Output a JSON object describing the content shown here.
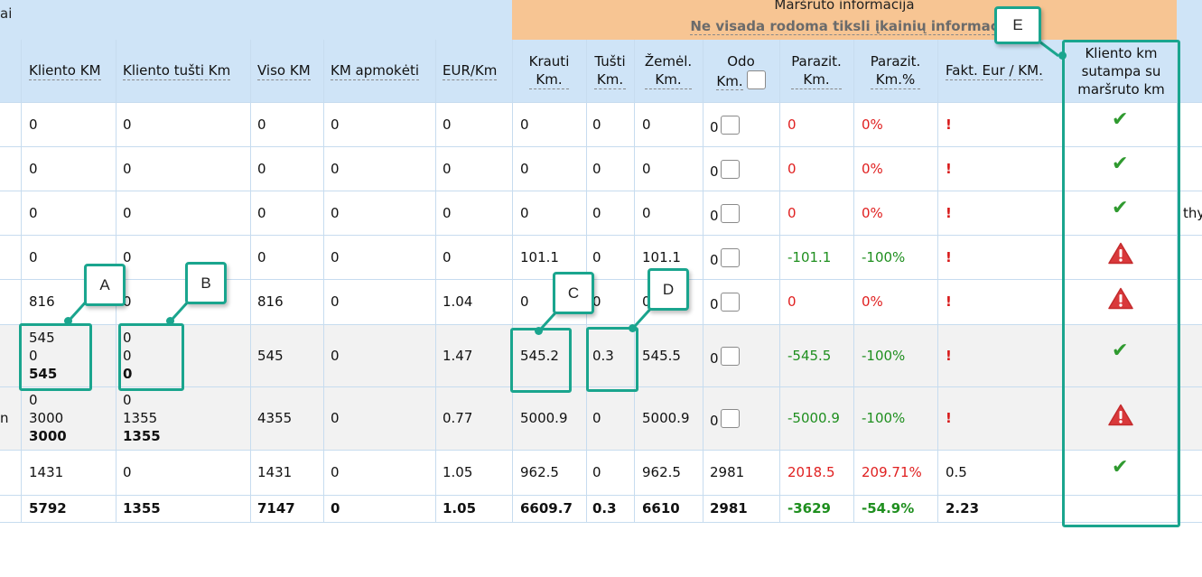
{
  "header": {
    "left_fragment": "ai",
    "route_title": "Maršruto informacija",
    "route_subtitle": "Ne visada rodoma tiksli įkainių informac"
  },
  "columns": {
    "client_km": "Kliento KM",
    "client_empty_km": "Kliento tušti Km",
    "total_km": "Viso KM",
    "km_paid": "KM apmokėti",
    "eur_km": "EUR/Km",
    "loaded_km_1": "Krauti",
    "loaded_km_2": "Km.",
    "empty_km_1": "Tušti",
    "empty_km_2": "Km.",
    "map_km_1": "Žemėl.",
    "map_km_2": "Km.",
    "odo_1": "Odo",
    "odo_2": "Km.",
    "parasitic_km_1": "Parazit.",
    "parasitic_km_2": "Km.",
    "parasitic_pct_1": "Parazit.",
    "parasitic_pct_2": "Km.%",
    "fact_eur_km": "Fakt. Eur / KM.",
    "match_1": "Kliento km",
    "match_2": "sutampa su",
    "match_3": "maršruto km"
  },
  "rows": [
    {
      "client_km": [
        "0"
      ],
      "client_empty": [
        "0"
      ],
      "total": "0",
      "paid": "0",
      "eur": "0",
      "loaded": "0",
      "empty": "0",
      "map": "0",
      "odo": "0",
      "parasitic": "0",
      "parasitic_pct": "0%",
      "fact": "!",
      "status": "check"
    },
    {
      "client_km": [
        "0"
      ],
      "client_empty": [
        "0"
      ],
      "total": "0",
      "paid": "0",
      "eur": "0",
      "loaded": "0",
      "empty": "0",
      "map": "0",
      "odo": "0",
      "parasitic": "0",
      "parasitic_pct": "0%",
      "fact": "!",
      "status": "check"
    },
    {
      "client_km": [
        "0"
      ],
      "client_empty": [
        "0"
      ],
      "total": "0",
      "paid": "0",
      "eur": "0",
      "loaded": "0",
      "empty": "0",
      "map": "0",
      "odo": "0",
      "parasitic": "0",
      "parasitic_pct": "0%",
      "fact": "!",
      "status": "check",
      "tail": "thy"
    },
    {
      "client_km": [
        "0"
      ],
      "client_empty": [
        "0"
      ],
      "total": "0",
      "paid": "0",
      "eur": "0",
      "loaded": "101.1",
      "empty": "0",
      "map": "101.1",
      "odo": "0",
      "parasitic": "-101.1",
      "parasitic_pct": "-100%",
      "fact": "!",
      "status": "warning"
    },
    {
      "client_km": [
        "816"
      ],
      "client_empty": [
        "0"
      ],
      "total": "816",
      "paid": "0",
      "eur": "1.04",
      "loaded": "0",
      "empty": "0",
      "map": "0",
      "odo": "0",
      "parasitic": "0",
      "parasitic_pct": "0%",
      "fact": "!",
      "status": "warning"
    },
    {
      "client_km": [
        "545",
        "0",
        "545"
      ],
      "client_empty": [
        "0",
        "0",
        "0"
      ],
      "total": "545",
      "paid": "0",
      "eur": "1.47",
      "loaded": "545.2",
      "empty": "0.3",
      "map": "545.5",
      "odo": "0",
      "parasitic": "-545.5",
      "parasitic_pct": "-100%",
      "fact": "!",
      "status": "check"
    },
    {
      "client_km": [
        "0",
        "3000",
        "3000"
      ],
      "client_empty": [
        "0",
        "1355",
        "1355"
      ],
      "total": "4355",
      "paid": "0",
      "eur": "0.77",
      "loaded": "5000.9",
      "empty": "0",
      "map": "5000.9",
      "odo": "0",
      "parasitic": "-5000.9",
      "parasitic_pct": "-100%",
      "fact": "!",
      "status": "warning",
      "left_fragment": "n"
    },
    {
      "client_km": [
        "1431"
      ],
      "client_empty": [
        "0"
      ],
      "total": "1431",
      "paid": "0",
      "eur": "1.05",
      "loaded": "962.5",
      "empty": "0",
      "map": "962.5",
      "odo": "2981",
      "parasitic": "2018.5",
      "parasitic_pct": "209.71%",
      "fact": "0.5",
      "status": "check"
    }
  ],
  "totals": {
    "client_km": "5792",
    "client_empty": "1355",
    "total": "7147",
    "paid": "0",
    "eur": "1.05",
    "loaded": "6609.7",
    "empty": "0.3",
    "map": "6610",
    "odo": "2981",
    "parasitic": "-3629",
    "parasitic_pct": "-54.9%",
    "fact": "2.23"
  },
  "callouts": {
    "a": "A",
    "b": "B",
    "c": "C",
    "d": "D",
    "e": "E"
  },
  "colors": {
    "header_bg": "#cfe4f7",
    "route_bg": "#f7c593",
    "callout": "#1aa58e",
    "negative": "#e02020",
    "positive": "#1f8f1f"
  }
}
